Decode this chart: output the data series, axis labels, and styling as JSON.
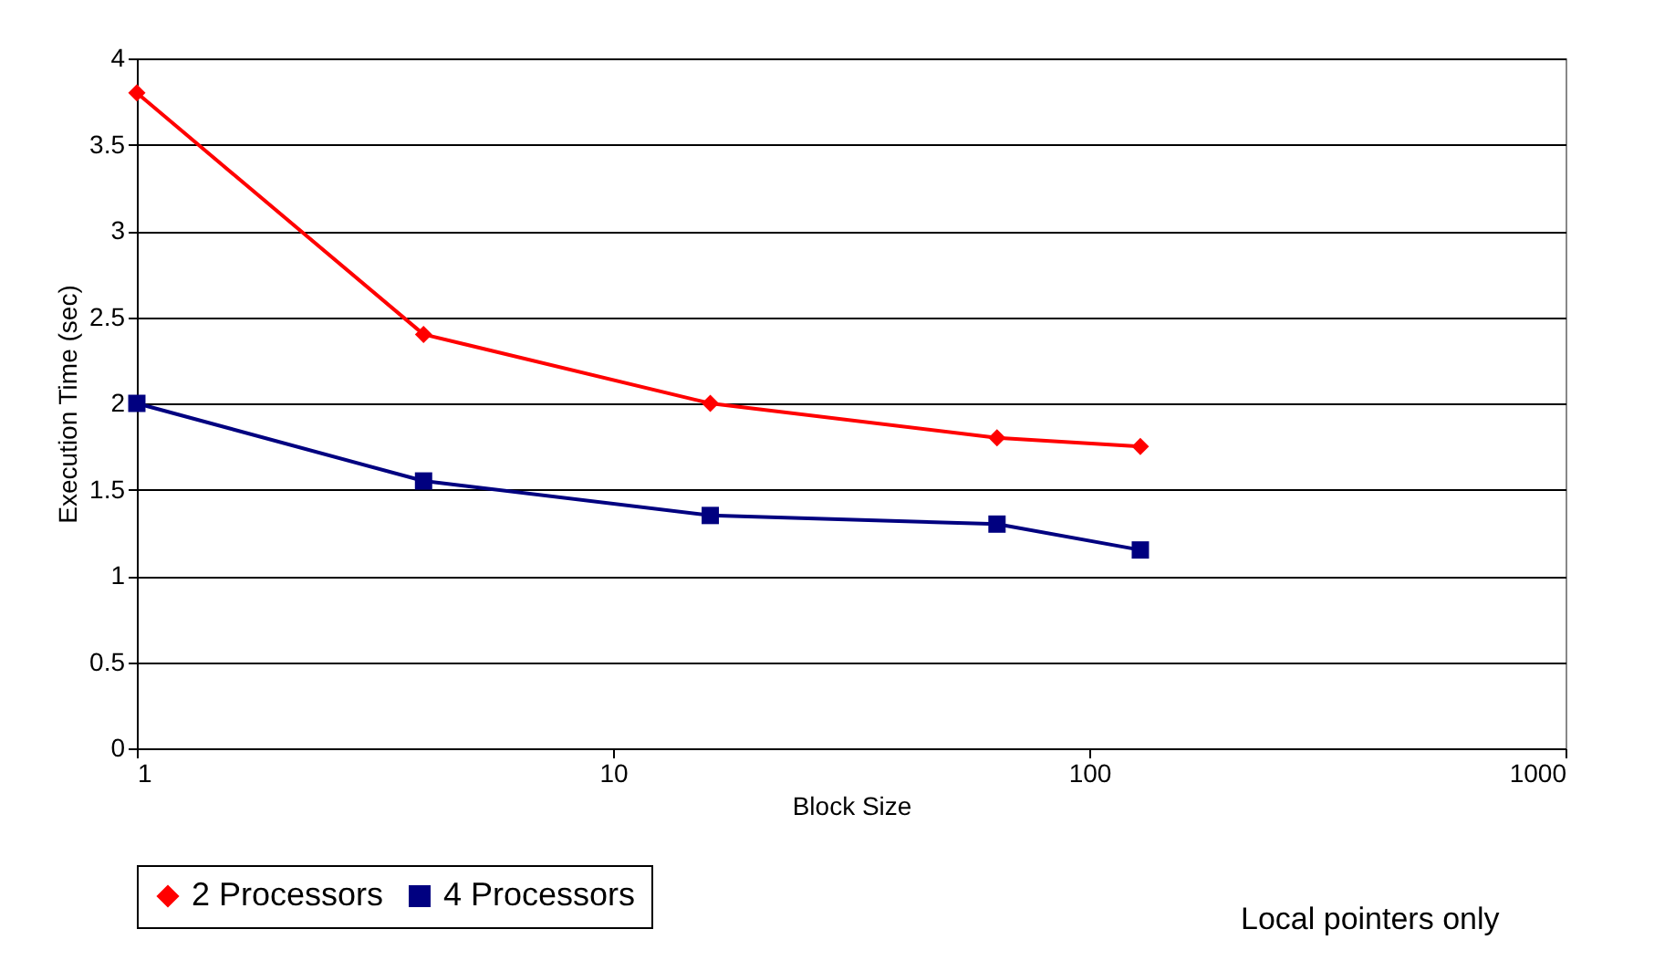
{
  "chart_data": {
    "type": "line",
    "xlabel": "Block Size",
    "ylabel": "Execution Time (sec)",
    "log": "x",
    "xlim": [
      1,
      1000
    ],
    "xticks": [
      1,
      10,
      100,
      1000
    ],
    "ylim": [
      0,
      4
    ],
    "yticks": [
      0,
      0.5,
      1,
      1.5,
      2,
      2.5,
      3,
      3.5,
      4
    ],
    "grid": "y",
    "legend": "bottom",
    "x": [
      1,
      4,
      16,
      64,
      128
    ],
    "series": [
      {
        "name": "2 Processors",
        "color": "#ff0000",
        "marker": "diamond",
        "values": [
          3.8,
          2.4,
          2.0,
          1.8,
          1.75
        ]
      },
      {
        "name": "4 Processors",
        "color": "#000080",
        "marker": "square",
        "values": [
          2.0,
          1.55,
          1.35,
          1.3,
          1.15
        ]
      }
    ],
    "annotations": [
      "Local pointers only"
    ]
  }
}
